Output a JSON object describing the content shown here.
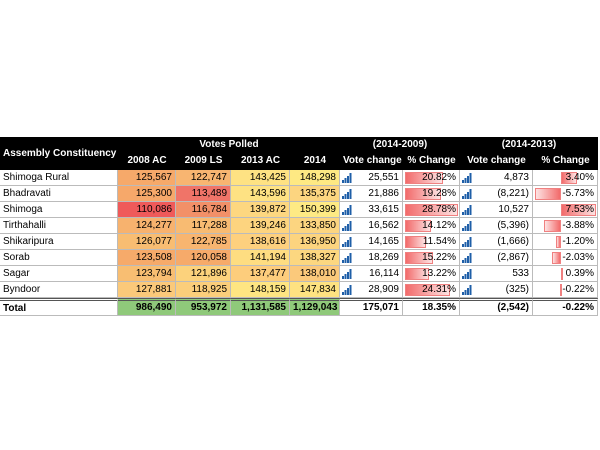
{
  "table": {
    "header": {
      "label": "Assembly Constituency",
      "groups": [
        "Votes Polled",
        "(2014-2009)",
        "(2014-2013)"
      ],
      "columns": [
        "2008 AC",
        "2009 LS",
        "2013 AC",
        "2014",
        "Vote change",
        "% Change",
        "Vote change",
        "% Change"
      ]
    },
    "rows": [
      {
        "name": "Shimoga Rural",
        "cells": [
          "125,567",
          "122,747",
          "143,425",
          "148,298",
          "25,551",
          "20.82%",
          "4,873",
          "3.40%"
        ],
        "fills": [
          "#f6a96a",
          "#f8b571",
          "#fee283",
          "#fee983"
        ]
      },
      {
        "name": "Bhadravati",
        "cells": [
          "125,300",
          "113,489",
          "143,596",
          "135,375",
          "21,886",
          "19.28%",
          "(8,221)",
          "-5.73%"
        ],
        "fills": [
          "#f6a86a",
          "#f07468",
          "#fee283",
          "#fcd580"
        ]
      },
      {
        "name": "Shimoga",
        "cells": [
          "110,086",
          "116,784",
          "139,872",
          "150,399",
          "33,615",
          "28.78%",
          "10,527",
          "7.53%"
        ],
        "fills": [
          "#ef5a5a",
          "#f29068",
          "#fdd780",
          "#feea84"
        ]
      },
      {
        "name": "Tirthahalli",
        "cells": [
          "124,277",
          "117,288",
          "139,246",
          "133,850",
          "16,562",
          "14.12%",
          "(5,396)",
          "-3.88%"
        ],
        "fills": [
          "#f7b26e",
          "#f8bb72",
          "#fdd47f",
          "#fcd580"
        ]
      },
      {
        "name": "Shikaripura",
        "cells": [
          "126,077",
          "122,785",
          "138,616",
          "136,950",
          "14,165",
          "11.54%",
          "(1,666)",
          "-1.20%"
        ],
        "fills": [
          "#f8bd72",
          "#f8b570",
          "#fdd07e",
          "#fcd47f"
        ]
      },
      {
        "name": "Sorab",
        "cells": [
          "123,508",
          "120,058",
          "141,194",
          "138,327",
          "18,269",
          "15.22%",
          "(2,867)",
          "-2.03%"
        ],
        "fills": [
          "#f6aa6a",
          "#f6aa6a",
          "#fedd81",
          "#fcd780"
        ]
      },
      {
        "name": "Sagar",
        "cells": [
          "123,794",
          "121,896",
          "137,477",
          "138,010",
          "16,114",
          "13.22%",
          "533",
          "0.39%"
        ],
        "fills": [
          "#f8be72",
          "#fcd27c",
          "#fdcd7c",
          "#fbc97b"
        ]
      },
      {
        "name": "Byndoor",
        "cells": [
          "127,881",
          "118,925",
          "148,159",
          "147,834",
          "28,909",
          "24.31%",
          "(325)",
          "-0.22%"
        ],
        "fills": [
          "#fbc97a",
          "#fbce7b",
          "#fee582",
          "#fee281"
        ]
      }
    ],
    "total": {
      "name": "Total",
      "cells": [
        "986,490",
        "953,972",
        "1,131,585",
        "1,129,043",
        "175,071",
        "18.35%",
        "(2,542)",
        "-0.22%"
      ],
      "fills": [
        "#8fc97a",
        "#8fc97a",
        "#8fc97a",
        "#8fc97a"
      ]
    }
  }
}
